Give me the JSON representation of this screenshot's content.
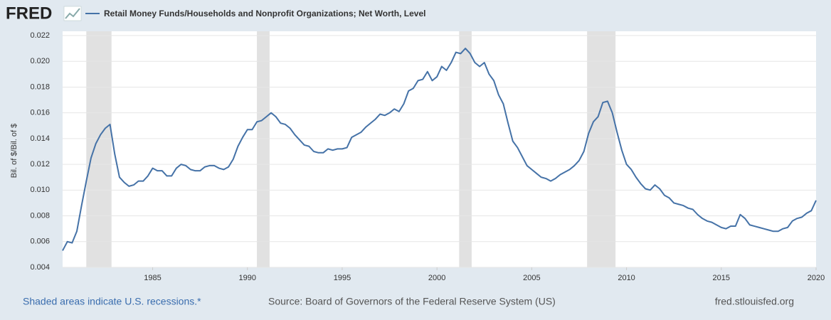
{
  "logo": "FRED",
  "footer": {
    "recession_note": "Shaded areas indicate U.S. recessions.*",
    "source": "Source: Board of Governors of the Federal Reserve System (US)",
    "site": "fred.stlouisfed.org"
  },
  "chart_data": {
    "type": "line",
    "ylabel": "Bil. of $/Bil. of $",
    "x": [
      1980.25,
      1980.5,
      1980.75,
      1981,
      1981.25,
      1981.5,
      1981.75,
      1982,
      1982.25,
      1982.5,
      1982.75,
      1983,
      1983.25,
      1983.5,
      1983.75,
      1984,
      1984.25,
      1984.5,
      1984.75,
      1985,
      1985.25,
      1985.5,
      1985.75,
      1986,
      1986.25,
      1986.5,
      1986.75,
      1987,
      1987.25,
      1987.5,
      1987.75,
      1988,
      1988.25,
      1988.5,
      1988.75,
      1989,
      1989.25,
      1989.5,
      1989.75,
      1990,
      1990.25,
      1990.5,
      1990.75,
      1991,
      1991.25,
      1991.5,
      1991.75,
      1992,
      1992.25,
      1992.5,
      1992.75,
      1993,
      1993.25,
      1993.5,
      1993.75,
      1994,
      1994.25,
      1994.5,
      1994.75,
      1995,
      1995.25,
      1995.5,
      1995.75,
      1996,
      1996.25,
      1996.5,
      1996.75,
      1997,
      1997.25,
      1997.5,
      1997.75,
      1998,
      1998.25,
      1998.5,
      1998.75,
      1999,
      1999.25,
      1999.5,
      1999.75,
      2000,
      2000.25,
      2000.5,
      2000.75,
      2001,
      2001.25,
      2001.5,
      2001.75,
      2002,
      2002.25,
      2002.5,
      2002.75,
      2003,
      2003.25,
      2003.5,
      2003.75,
      2004,
      2004.25,
      2004.5,
      2004.75,
      2005,
      2005.25,
      2005.5,
      2005.75,
      2006,
      2006.25,
      2006.5,
      2006.75,
      2007,
      2007.25,
      2007.5,
      2007.75,
      2008,
      2008.25,
      2008.5,
      2008.75,
      2009,
      2009.25,
      2009.5,
      2009.75,
      2010,
      2010.25,
      2010.5,
      2010.75,
      2011,
      2011.25,
      2011.5,
      2011.75,
      2012,
      2012.25,
      2012.5,
      2012.75,
      2013,
      2013.25,
      2013.5,
      2013.75,
      2014,
      2014.25,
      2014.5,
      2014.75,
      2015,
      2015.25,
      2015.5,
      2015.75,
      2016,
      2016.25,
      2016.5,
      2016.75,
      2017,
      2017.25,
      2017.5,
      2017.75,
      2018,
      2018.25,
      2018.5,
      2018.75,
      2019,
      2019.25,
      2019.5,
      2019.75,
      2020
    ],
    "series": [
      {
        "name": "Retail Money Funds/Households and Nonprofit Organizations; Net Worth, Level",
        "color": "#4572a7",
        "values": [
          0.0053,
          0.006,
          0.0059,
          0.0068,
          0.0088,
          0.0107,
          0.0125,
          0.0136,
          0.0143,
          0.0148,
          0.0151,
          0.0128,
          0.011,
          0.0106,
          0.0103,
          0.0104,
          0.0107,
          0.0107,
          0.0111,
          0.0117,
          0.0115,
          0.0115,
          0.0111,
          0.0111,
          0.0117,
          0.012,
          0.0119,
          0.0116,
          0.0115,
          0.0115,
          0.0118,
          0.0119,
          0.0119,
          0.0117,
          0.0116,
          0.0118,
          0.0124,
          0.0134,
          0.0141,
          0.0147,
          0.0147,
          0.0153,
          0.0154,
          0.0157,
          0.016,
          0.0157,
          0.0152,
          0.0151,
          0.0148,
          0.0143,
          0.0139,
          0.0135,
          0.0134,
          0.013,
          0.0129,
          0.0129,
          0.0132,
          0.0131,
          0.0132,
          0.0132,
          0.0133,
          0.0141,
          0.0143,
          0.0145,
          0.0149,
          0.0152,
          0.0155,
          0.0159,
          0.0158,
          0.016,
          0.0163,
          0.0161,
          0.0167,
          0.0177,
          0.0179,
          0.0185,
          0.0186,
          0.0192,
          0.0185,
          0.0188,
          0.0196,
          0.0193,
          0.0199,
          0.0207,
          0.0206,
          0.021,
          0.0206,
          0.0199,
          0.0196,
          0.0199,
          0.019,
          0.0185,
          0.0174,
          0.0167,
          0.0152,
          0.0138,
          0.0133,
          0.0126,
          0.0119,
          0.0116,
          0.0113,
          0.011,
          0.0109,
          0.0107,
          0.0109,
          0.0112,
          0.0114,
          0.0116,
          0.0119,
          0.0123,
          0.013,
          0.0144,
          0.0153,
          0.0157,
          0.0168,
          0.0169,
          0.016,
          0.0145,
          0.0131,
          0.012,
          0.0116,
          0.011,
          0.0105,
          0.0101,
          0.01,
          0.0104,
          0.0101,
          0.0096,
          0.0094,
          0.009,
          0.0089,
          0.0088,
          0.0086,
          0.0085,
          0.0081,
          0.0078,
          0.0076,
          0.0075,
          0.0073,
          0.0071,
          0.007,
          0.0072,
          0.0072,
          0.0081,
          0.0078,
          0.0073,
          0.0072,
          0.0071,
          0.007,
          0.0069,
          0.0068,
          0.0068,
          0.007,
          0.0071,
          0.0076,
          0.0078,
          0.0079,
          0.0082,
          0.0084,
          0.0092
        ]
      }
    ],
    "recessions": [
      [
        1981.5,
        1982.83
      ],
      [
        1990.5,
        1991.17
      ],
      [
        2001.17,
        2001.83
      ],
      [
        2007.92,
        2009.42
      ]
    ],
    "recession_color": "#e1e1e1",
    "xlim": [
      1980.25,
      2020
    ],
    "xticks": [
      1985,
      1990,
      1995,
      2000,
      2005,
      2010,
      2015,
      2020
    ],
    "ylim": [
      0.004,
      0.022
    ],
    "yticks": [
      0.004,
      0.006,
      0.008,
      {
        "value": 0.01,
        "label": "0.010"
      },
      0.012,
      0.014,
      0.016,
      0.018,
      {
        "value": 0.02,
        "label": "0.020"
      },
      0.022
    ],
    "grid": true
  }
}
